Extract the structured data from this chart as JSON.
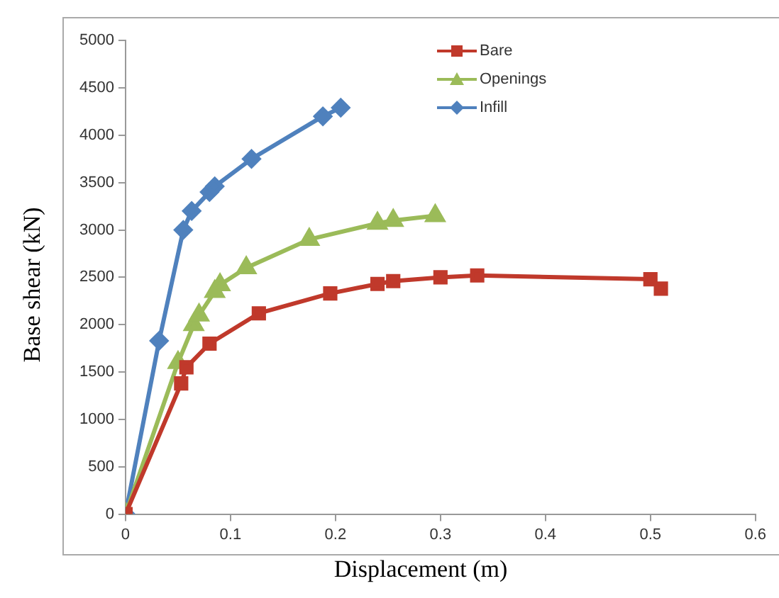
{
  "chart_data": {
    "type": "line",
    "xlabel": "Displacement (m)",
    "ylabel": "Base shear (kN)",
    "xlim": [
      0,
      0.6
    ],
    "xticks": [
      0,
      0.1,
      0.2,
      0.3,
      0.4,
      0.5,
      0.6
    ],
    "ylim": [
      0,
      5000
    ],
    "yticks": [
      0,
      500,
      1000,
      1500,
      2000,
      2500,
      3000,
      3500,
      4000,
      4500,
      5000
    ],
    "grid": false,
    "legend": "top right",
    "series": [
      {
        "name": "Bare",
        "color": "#c0392b",
        "marker": "square",
        "x": [
          0,
          0.053,
          0.058,
          0.08,
          0.127,
          0.195,
          0.24,
          0.255,
          0.3,
          0.335,
          0.5,
          0.51
        ],
        "values": [
          0,
          1380,
          1550,
          1800,
          2120,
          2330,
          2430,
          2460,
          2500,
          2520,
          2480,
          2380
        ]
      },
      {
        "name": "Openings",
        "color": "#9bbb59",
        "marker": "triangle",
        "x": [
          0,
          0.05,
          0.065,
          0.07,
          0.085,
          0.09,
          0.115,
          0.175,
          0.24,
          0.255,
          0.295
        ],
        "values": [
          0,
          1600,
          2000,
          2100,
          2350,
          2420,
          2600,
          2900,
          3070,
          3100,
          3150
        ]
      },
      {
        "name": "Infill",
        "color": "#4f81bd",
        "marker": "diamond",
        "x": [
          0,
          0.032,
          0.055,
          0.063,
          0.08,
          0.085,
          0.12,
          0.188,
          0.205
        ],
        "values": [
          0,
          1830,
          3000,
          3200,
          3400,
          3460,
          3750,
          4200,
          4290
        ]
      }
    ]
  }
}
